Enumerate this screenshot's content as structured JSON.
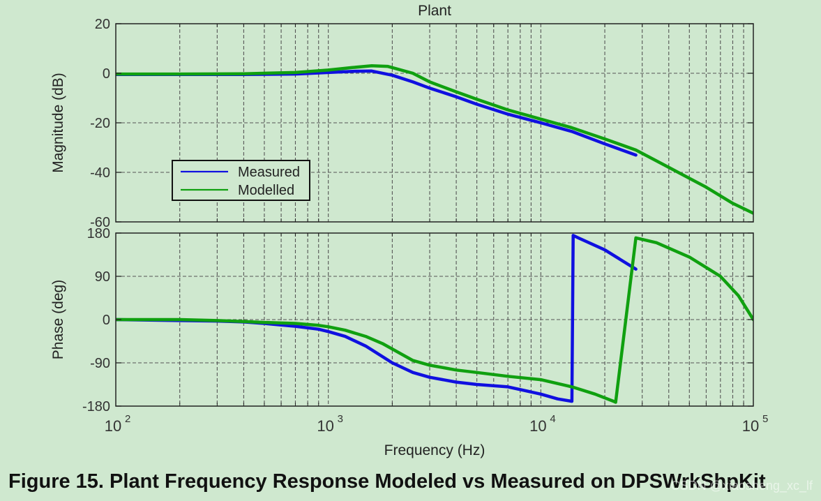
{
  "colors": {
    "background": "#cfe8cf",
    "measured": "#1010e0",
    "modelled": "#10a010",
    "axis": "#222222",
    "grid": "#555555"
  },
  "chart_data": [
    {
      "type": "line",
      "title": "Plant",
      "xlabel": "",
      "ylabel": "Magnitude (dB)",
      "xscale": "log",
      "xlim": [
        100,
        100000
      ],
      "ylim": [
        -60,
        20
      ],
      "yticks": [
        20,
        0,
        -20,
        -40,
        -60
      ],
      "ytick_labels": [
        "20",
        "0",
        "-20",
        "-40",
        "-60"
      ],
      "grid": true,
      "legend": {
        "placement": "lower-left",
        "entries": [
          "Measured",
          "Modelled"
        ]
      },
      "series": [
        {
          "name": "Measured",
          "color": "#1010e0",
          "x": [
            100,
            200,
            400,
            700,
            1000,
            1300,
            1600,
            2000,
            2500,
            3000,
            4000,
            5000,
            7000,
            10000,
            14000,
            20000,
            28000
          ],
          "y": [
            -0.5,
            -0.5,
            -0.5,
            -0.3,
            0.3,
            0.8,
            0.9,
            -0.8,
            -3.5,
            -6,
            -9.5,
            -12.5,
            -16.5,
            -20,
            -23.5,
            -28.5,
            -33
          ]
        },
        {
          "name": "Modelled",
          "color": "#10a010",
          "x": [
            100,
            200,
            400,
            700,
            1000,
            1300,
            1600,
            1900,
            2500,
            3000,
            4000,
            5000,
            7000,
            10000,
            14000,
            20000,
            28000,
            40000,
            60000,
            80000,
            100000
          ],
          "y": [
            -0.3,
            -0.3,
            -0.2,
            0.3,
            1.3,
            2.3,
            3,
            2.8,
            0,
            -3.5,
            -7.5,
            -10.5,
            -14.8,
            -18.5,
            -22,
            -26.5,
            -31,
            -38,
            -46,
            -52.5,
            -56.5
          ]
        }
      ]
    },
    {
      "type": "line",
      "title": "",
      "xlabel": "Frequency (Hz)",
      "ylabel": "Phase (deg)",
      "xscale": "log",
      "xlim": [
        100,
        100000
      ],
      "ylim": [
        -180,
        180
      ],
      "yticks": [
        180,
        90,
        0,
        -90,
        -180
      ],
      "ytick_labels": [
        "180",
        "90",
        "0",
        "-90",
        "-180"
      ],
      "xticks": [
        100,
        1000,
        10000,
        100000
      ],
      "xtick_labels": [
        {
          "base": "10",
          "exp": "2"
        },
        {
          "base": "10",
          "exp": "3"
        },
        {
          "base": "10",
          "exp": "4"
        },
        {
          "base": "10",
          "exp": "5"
        }
      ],
      "grid": true,
      "series": [
        {
          "name": "Measured",
          "color": "#1010e0",
          "x": [
            100,
            200,
            300,
            400,
            500,
            700,
            900,
            1000,
            1200,
            1500,
            2000,
            2500,
            3000,
            4000,
            5000,
            7000,
            10000,
            12000,
            14000,
            14200,
            15000,
            20000,
            28000
          ],
          "y": [
            0,
            -2,
            -3,
            -5,
            -8,
            -14,
            -20,
            -25,
            -35,
            -55,
            -90,
            -110,
            -120,
            -130,
            -135,
            -140,
            -155,
            -165,
            -170,
            175,
            170,
            145,
            105
          ]
        },
        {
          "name": "Modelled",
          "color": "#10a010",
          "x": [
            100,
            200,
            300,
            400,
            500,
            700,
            900,
            1000,
            1200,
            1500,
            1800,
            2500,
            3000,
            4000,
            5000,
            7000,
            10000,
            14000,
            18000,
            22000,
            22500,
            28000,
            35000,
            50000,
            70000,
            85000,
            100000
          ],
          "y": [
            0,
            0,
            -2,
            -4,
            -6,
            -8,
            -12,
            -15,
            -22,
            -35,
            -50,
            -85,
            -95,
            -105,
            -110,
            -118,
            -125,
            -140,
            -155,
            -170,
            -172,
            170,
            160,
            130,
            90,
            50,
            0
          ]
        }
      ]
    }
  ],
  "caption": "Figure 15. Plant Frequency Response Modeled vs Measured on DPSWrkShpKit",
  "watermark": "CSDN @xiaosheng_xc_lf"
}
